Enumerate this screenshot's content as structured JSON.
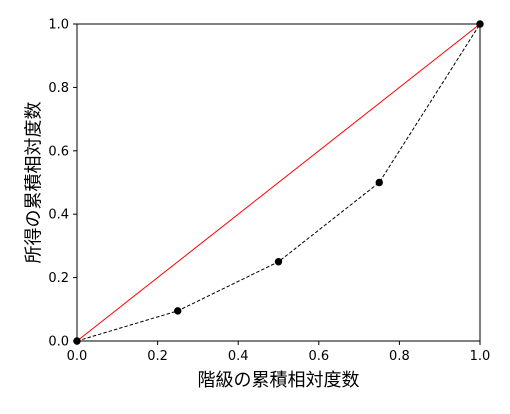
{
  "chart_data": {
    "type": "line",
    "title": "",
    "xlabel": "階級の累積相対度数",
    "ylabel": "所得の累積相対度数",
    "xlim": [
      0.0,
      1.0
    ],
    "ylim": [
      0.0,
      1.0
    ],
    "x_ticks": [
      0.0,
      0.2,
      0.4,
      0.6,
      0.8,
      1.0
    ],
    "x_tick_labels": [
      "0.0",
      "0.2",
      "0.4",
      "0.6",
      "0.8",
      "1.0"
    ],
    "y_ticks": [
      0.0,
      0.2,
      0.4,
      0.6,
      0.8,
      1.0
    ],
    "y_tick_labels": [
      "0.0",
      "0.2",
      "0.4",
      "0.6",
      "0.8",
      "1.0"
    ],
    "grid": false,
    "series": [
      {
        "style": "solid",
        "color": "#ff0000",
        "x": [
          0.0,
          1.0
        ],
        "y": [
          0.0,
          1.0
        ]
      },
      {
        "style": "dashed-with-markers",
        "color": "#000000",
        "x": [
          0.0,
          0.25,
          0.5,
          0.75,
          1.0
        ],
        "y": [
          0.0,
          0.095,
          0.25,
          0.5,
          1.0
        ]
      }
    ]
  }
}
